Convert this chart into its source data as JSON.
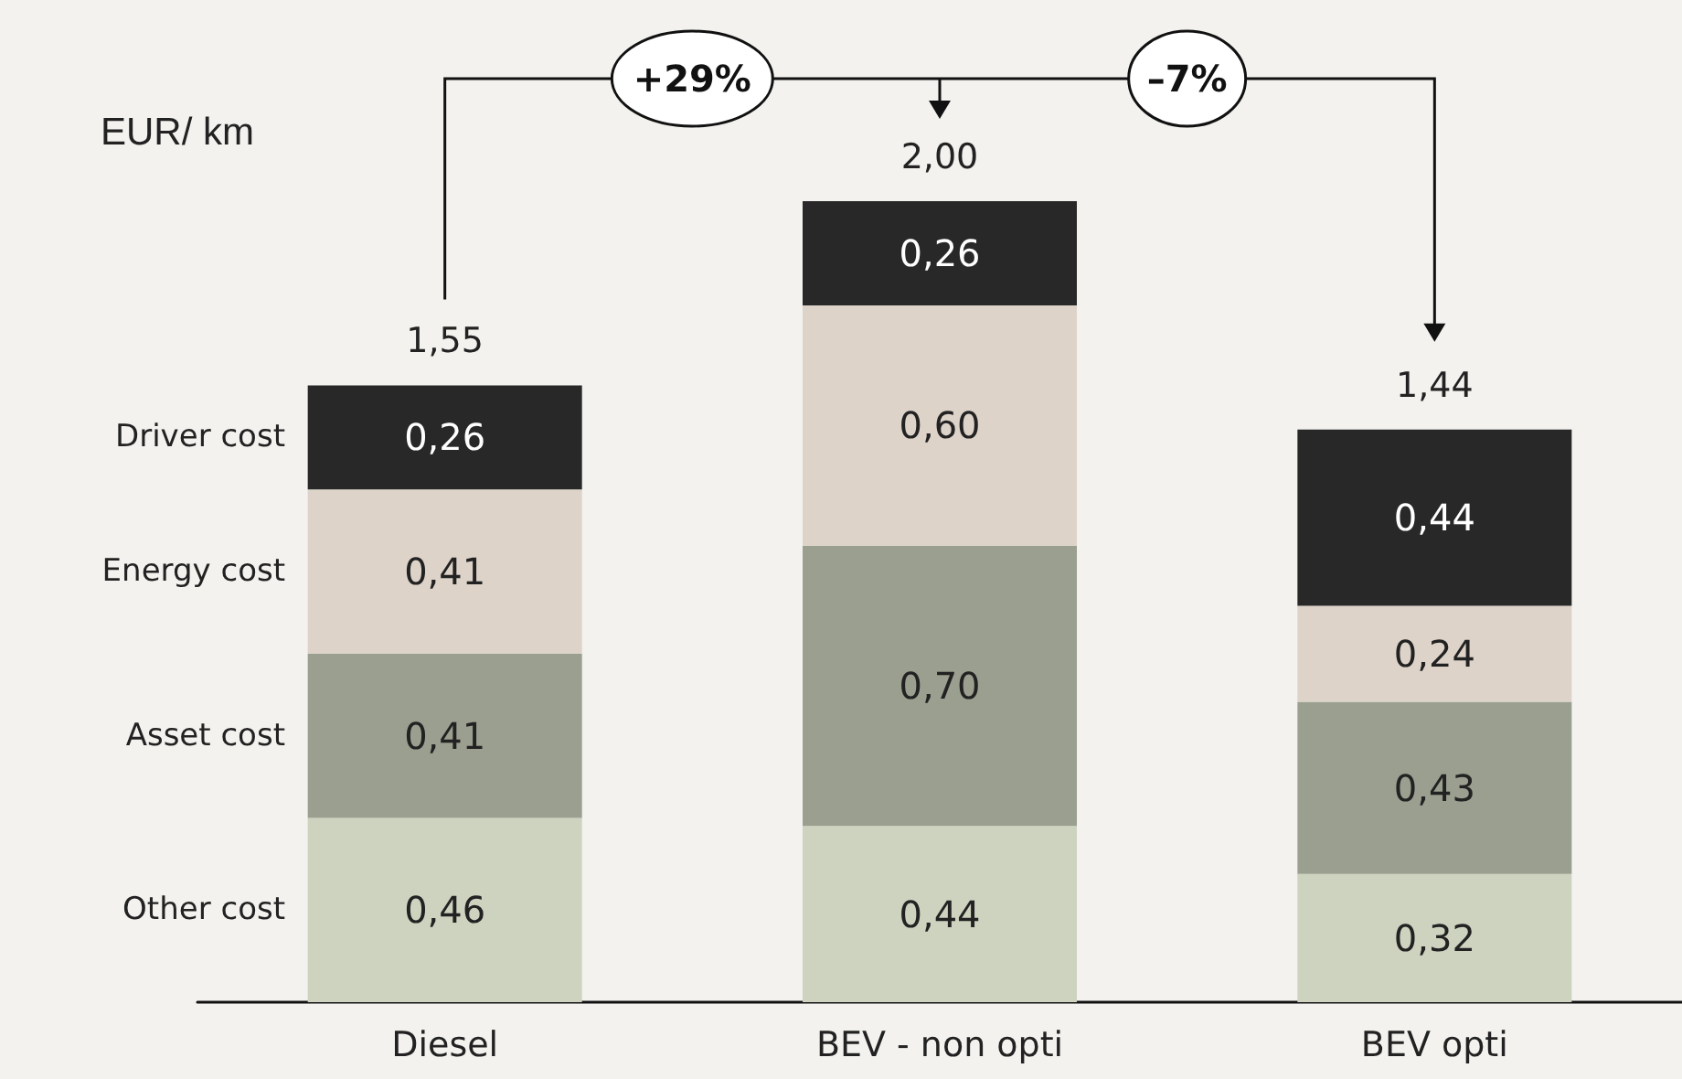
{
  "chart_data": {
    "type": "bar",
    "stacked": true,
    "ylabel": "EUR/ km",
    "categories": [
      "Diesel",
      "BEV - non opti",
      "BEV opti"
    ],
    "series": [
      {
        "name": "Other cost",
        "color": "#cdd3bf",
        "values": [
          0.46,
          0.44,
          0.32
        ],
        "value_labels": [
          "0,46",
          "0,44",
          "0,32"
        ]
      },
      {
        "name": "Asset cost",
        "color": "#9a9f8f",
        "values": [
          0.41,
          0.7,
          0.43
        ],
        "value_labels": [
          "0,41",
          "0,70",
          "0,43"
        ]
      },
      {
        "name": "Energy cost",
        "color": "#ddd3c9",
        "values": [
          0.41,
          0.6,
          0.24
        ],
        "value_labels": [
          "0,41",
          "0,60",
          "0,24"
        ]
      },
      {
        "name": "Driver cost",
        "color": "#282828",
        "values": [
          0.26,
          0.26,
          0.44
        ],
        "value_labels": [
          "0,26",
          "0,26",
          "0,44"
        ]
      }
    ],
    "totals": [
      "1,55",
      "2,00",
      "1,44"
    ],
    "annotations": [
      "+29%",
      "–7%"
    ],
    "legend": false
  }
}
